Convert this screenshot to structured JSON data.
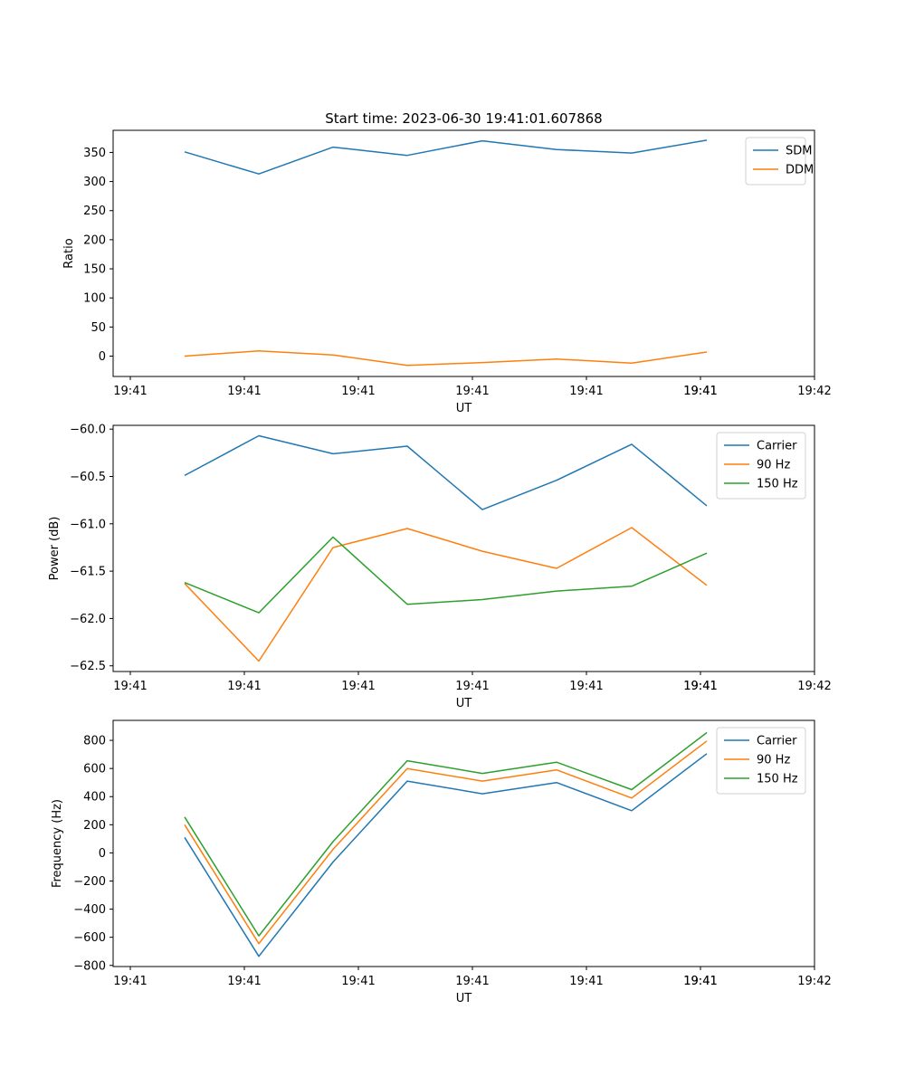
{
  "title": "Start time: 2023-06-30 19:41:01.607868",
  "chart_data": [
    {
      "type": "line",
      "xlabel": "UT",
      "ylabel": "Ratio",
      "x_tick_labels": [
        "19:41",
        "19:41",
        "19:41",
        "19:41",
        "19:41",
        "19:41",
        "19:41",
        "19:42"
      ],
      "ylim": [
        -35,
        388
      ],
      "y_ticks": [
        0,
        50,
        100,
        150,
        200,
        250,
        300,
        350
      ],
      "legend_position": "upper right",
      "series": [
        {
          "name": "SDM",
          "color": "#1f77b4",
          "values": [
            351,
            313,
            359,
            345,
            370,
            355,
            349,
            371
          ]
        },
        {
          "name": "DDM",
          "color": "#ff7f0e",
          "values": [
            0,
            9,
            2,
            -16,
            -11,
            -5,
            -12,
            7
          ]
        }
      ]
    },
    {
      "type": "line",
      "xlabel": "UT",
      "ylabel": "Power (dB)",
      "x_tick_labels": [
        "19:41",
        "19:41",
        "19:41",
        "19:41",
        "19:41",
        "19:41",
        "19:41",
        "19:42"
      ],
      "ylim": [
        -62.56,
        -59.96
      ],
      "y_ticks": [
        -62.5,
        -62.0,
        -61.5,
        -61.0,
        -60.5,
        -60.0
      ],
      "y_tick_labels": [
        "−62.5",
        "−62.0",
        "−61.5",
        "−61.0",
        "−60.5",
        "−60.0"
      ],
      "legend_position": "upper right",
      "series": [
        {
          "name": "Carrier",
          "color": "#1f77b4",
          "values": [
            -60.49,
            -60.07,
            -60.26,
            -60.18,
            -60.85,
            -60.54,
            -60.16,
            -60.81
          ]
        },
        {
          "name": "90 Hz",
          "color": "#ff7f0e",
          "values": [
            -61.63,
            -62.45,
            -61.25,
            -61.05,
            -61.29,
            -61.47,
            -61.04,
            -61.65
          ]
        },
        {
          "name": "150 Hz",
          "color": "#2ca02c",
          "values": [
            -61.62,
            -61.94,
            -61.14,
            -61.85,
            -61.8,
            -61.71,
            -61.66,
            -61.31
          ]
        }
      ]
    },
    {
      "type": "line",
      "xlabel": "UT",
      "ylabel": "Frequency (Hz)",
      "x_tick_labels": [
        "19:41",
        "19:41",
        "19:41",
        "19:41",
        "19:41",
        "19:41",
        "19:41",
        "19:42"
      ],
      "ylim": [
        -808,
        942
      ],
      "y_ticks": [
        -800,
        -600,
        -400,
        -200,
        0,
        200,
        400,
        600,
        800
      ],
      "y_tick_labels": [
        "−800",
        "−600",
        "−400",
        "−200",
        "0",
        "200",
        "400",
        "600",
        "800"
      ],
      "legend_position": "upper right",
      "series": [
        {
          "name": "Carrier",
          "color": "#1f77b4",
          "values": [
            110,
            -735,
            -65,
            510,
            420,
            500,
            300,
            705
          ]
        },
        {
          "name": "90 Hz",
          "color": "#ff7f0e",
          "values": [
            200,
            -645,
            25,
            600,
            510,
            590,
            390,
            795
          ]
        },
        {
          "name": "150 Hz",
          "color": "#2ca02c",
          "values": [
            255,
            -590,
            80,
            655,
            565,
            645,
            450,
            855
          ]
        }
      ]
    }
  ]
}
